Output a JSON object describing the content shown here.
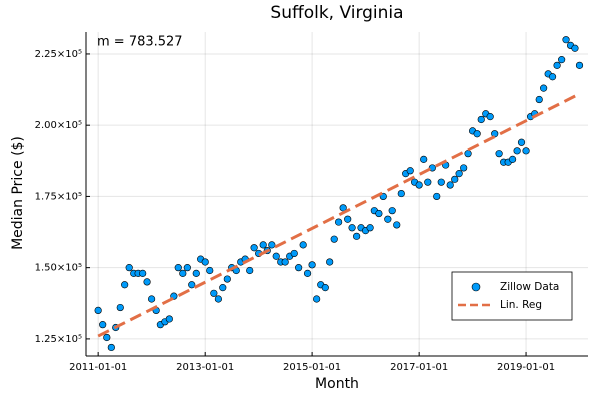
{
  "chart_data": {
    "type": "scatter",
    "title": "Suffolk, Virginia",
    "xlabel": "Month",
    "ylabel": "Median Price ($)",
    "annotation": "m = 783.527",
    "xlim": [
      "2010-10-10",
      "2020-02-28"
    ],
    "xticks": [
      "2011-01-01",
      "2013-01-01",
      "2015-01-01",
      "2017-01-01",
      "2019-01-01"
    ],
    "ylim": [
      119000,
      232700
    ],
    "yticks": [
      {
        "value": 125000,
        "label": "1.25×10⁵"
      },
      {
        "value": 150000,
        "label": "1.50×10⁵"
      },
      {
        "value": 175000,
        "label": "1.75×10⁵"
      },
      {
        "value": 200000,
        "label": "2.00×10⁵"
      },
      {
        "value": 225000,
        "label": "2.25×10⁵"
      }
    ],
    "grid": true,
    "legend": "bottom-right",
    "series": [
      {
        "name": "Zillow Data",
        "color": "#009af9",
        "style": "markers",
        "x": [
          "2011-01-01",
          "2011-02-01",
          "2011-03-01",
          "2011-04-01",
          "2011-05-01",
          "2011-06-01",
          "2011-07-01",
          "2011-08-01",
          "2011-09-01",
          "2011-10-01",
          "2011-11-01",
          "2011-12-01",
          "2012-01-01",
          "2012-02-01",
          "2012-03-01",
          "2012-04-01",
          "2012-05-01",
          "2012-06-01",
          "2012-07-01",
          "2012-08-01",
          "2012-09-01",
          "2012-10-01",
          "2012-11-01",
          "2012-12-01",
          "2013-01-01",
          "2013-02-01",
          "2013-03-01",
          "2013-04-01",
          "2013-05-01",
          "2013-06-01",
          "2013-07-01",
          "2013-08-01",
          "2013-09-01",
          "2013-10-01",
          "2013-11-01",
          "2013-12-01",
          "2014-01-01",
          "2014-02-01",
          "2014-03-01",
          "2014-04-01",
          "2014-05-01",
          "2014-06-01",
          "2014-07-01",
          "2014-08-01",
          "2014-09-01",
          "2014-10-01",
          "2014-11-01",
          "2014-12-01",
          "2015-01-01",
          "2015-02-01",
          "2015-03-01",
          "2015-04-01",
          "2015-05-01",
          "2015-06-01",
          "2015-07-01",
          "2015-08-01",
          "2015-09-01",
          "2015-10-01",
          "2015-11-01",
          "2015-12-01",
          "2016-01-01",
          "2016-02-01",
          "2016-03-01",
          "2016-04-01",
          "2016-05-01",
          "2016-06-01",
          "2016-07-01",
          "2016-08-01",
          "2016-09-01",
          "2016-10-01",
          "2016-11-01",
          "2016-12-01",
          "2017-01-01",
          "2017-02-01",
          "2017-03-01",
          "2017-04-01",
          "2017-05-01",
          "2017-06-01",
          "2017-07-01",
          "2017-08-01",
          "2017-09-01",
          "2017-10-01",
          "2017-11-01",
          "2017-12-01",
          "2018-01-01",
          "2018-02-01",
          "2018-03-01",
          "2018-04-01",
          "2018-05-01",
          "2018-06-01",
          "2018-07-01",
          "2018-08-01",
          "2018-09-01",
          "2018-10-01",
          "2018-11-01",
          "2018-12-01",
          "2019-01-01",
          "2019-02-01",
          "2019-03-01",
          "2019-04-01",
          "2019-05-01",
          "2019-06-01",
          "2019-07-01",
          "2019-08-01",
          "2019-09-01",
          "2019-10-01",
          "2019-11-01",
          "2019-12-01",
          "2020-01-01"
        ],
        "values": [
          135000,
          130000,
          125500,
          122000,
          129000,
          136000,
          144000,
          150000,
          148000,
          148000,
          148000,
          145000,
          139000,
          135000,
          130000,
          131000,
          132000,
          140000,
          150000,
          148000,
          150000,
          144000,
          148000,
          153000,
          152000,
          149000,
          141000,
          139000,
          143000,
          146000,
          150000,
          149000,
          152000,
          153000,
          149000,
          157000,
          155000,
          158000,
          156000,
          158000,
          154000,
          152000,
          152000,
          154000,
          155000,
          150000,
          158000,
          148000,
          151000,
          139000,
          144000,
          143000,
          152000,
          160000,
          166000,
          171000,
          167000,
          164000,
          161000,
          164000,
          163000,
          164000,
          170000,
          169000,
          175000,
          167000,
          170000,
          165000,
          176000,
          183000,
          184000,
          180000,
          179000,
          188000,
          180000,
          185000,
          175000,
          180000,
          186000,
          179000,
          181000,
          183000,
          185000,
          190000,
          198000,
          197000,
          202000,
          204000,
          203000,
          197000,
          190000,
          187000,
          187000,
          188000,
          191000,
          194000,
          191000,
          203000,
          204000,
          209000,
          213000,
          218000,
          217000,
          221000,
          223000,
          230000,
          228000,
          227000,
          221000
        ]
      },
      {
        "name": "Lin. Reg",
        "color": "#e26f46",
        "style": "dashed-line",
        "x": [
          "2011-01-01",
          "2020-01-01"
        ],
        "values": [
          126000,
          211000
        ]
      }
    ]
  }
}
